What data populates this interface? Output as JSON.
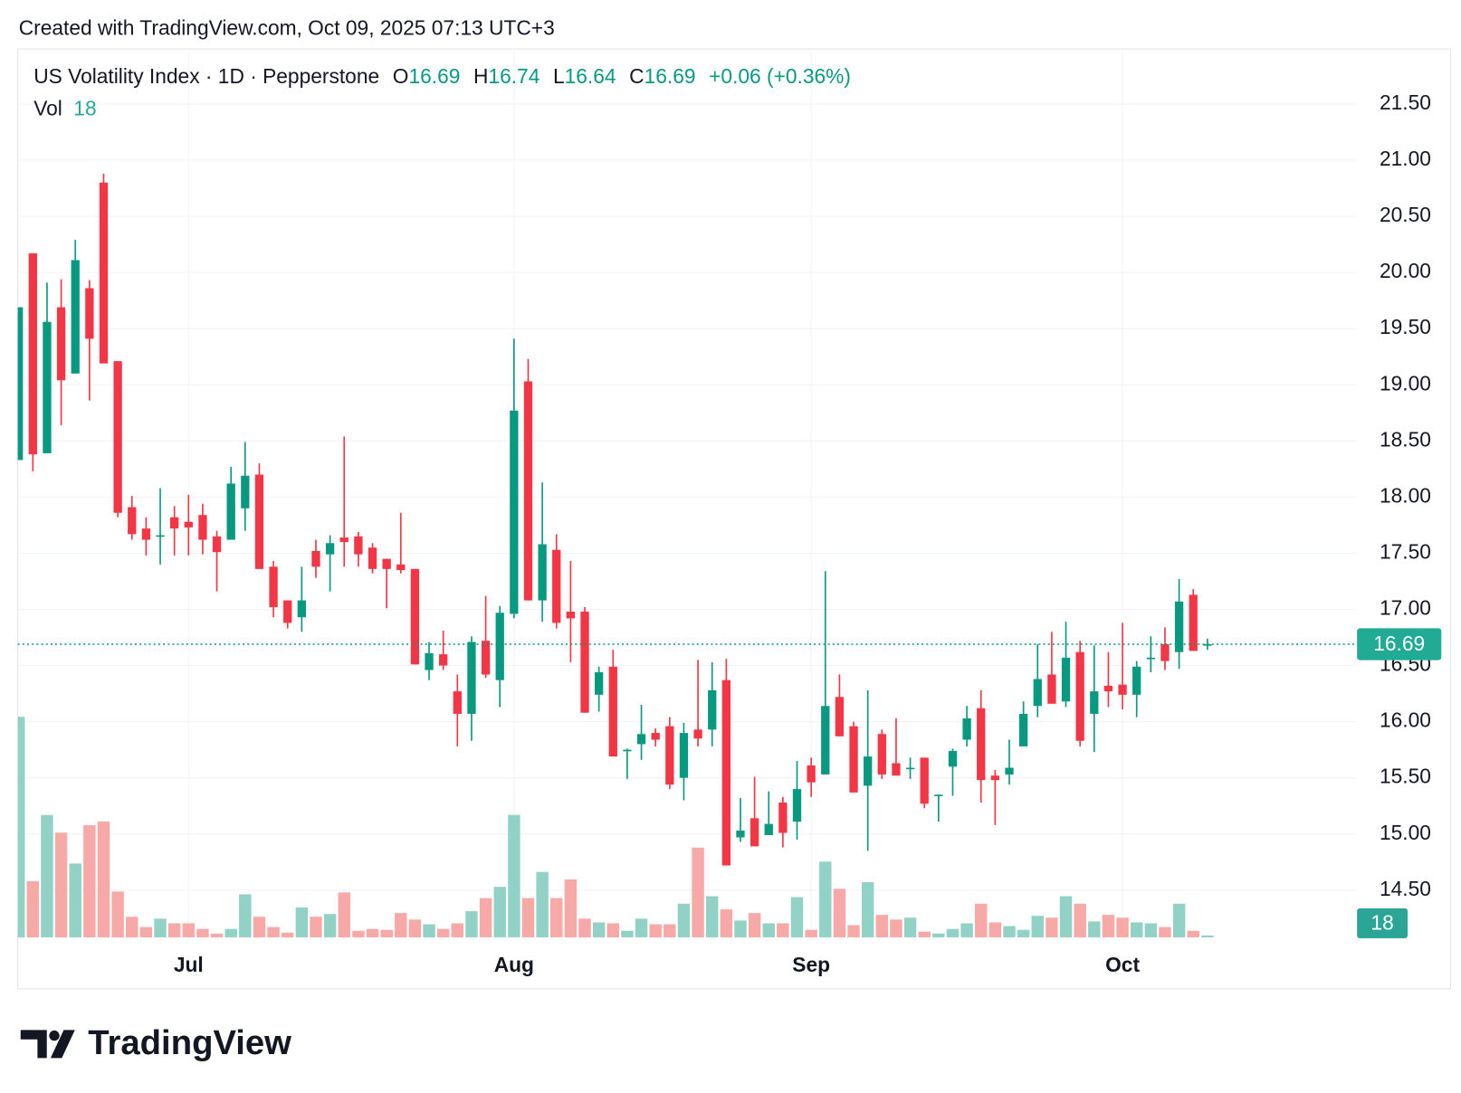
{
  "caption": "Created with TradingView.com, Oct 09, 2025 07:13 UTC+3",
  "brand": "TradingView",
  "chart_data": {
    "type": "candlestick",
    "symbol": "US Volatility Index · 1D · Pepperstone",
    "ohlc_letters": [
      "O",
      "H",
      "L",
      "C"
    ],
    "change": "+0.06 (+0.36%)",
    "volume_label": "Vol",
    "categories": [
      null,
      null,
      null,
      null,
      null,
      null,
      null,
      null,
      null,
      null,
      null,
      null,
      "Jul",
      null,
      null,
      null,
      null,
      null,
      null,
      null,
      null,
      null,
      null,
      null,
      null,
      null,
      null,
      null,
      null,
      null,
      null,
      null,
      null,
      null,
      null,
      "Aug",
      null,
      null,
      null,
      null,
      null,
      null,
      null,
      null,
      null,
      null,
      null,
      null,
      null,
      null,
      null,
      null,
      null,
      null,
      null,
      null,
      "Sep",
      null,
      null,
      null,
      null,
      null,
      null,
      null,
      null,
      null,
      null,
      null,
      null,
      null,
      null,
      null,
      null,
      null,
      null,
      null,
      null,
      null,
      "Oct",
      null,
      null,
      null,
      null,
      null,
      null
    ],
    "open": [
      18.33,
      20.17,
      18.39,
      19.69,
      19.1,
      19.86,
      20.8,
      19.21,
      17.91,
      17.72,
      17.65,
      17.82,
      17.78,
      17.84,
      17.65,
      17.62,
      17.9,
      18.2,
      17.38,
      17.08,
      16.93,
      17.52,
      17.49,
      17.64,
      17.65,
      17.55,
      17.45,
      17.4,
      17.36,
      16.46,
      16.6,
      16.27,
      16.07,
      16.72,
      16.37,
      16.96,
      19.03,
      17.08,
      17.53,
      16.98,
      16.98,
      16.24,
      16.49,
      15.74,
      15.8,
      15.9,
      15.96,
      15.5,
      15.93,
      15.93,
      16.37,
      14.97,
      15.14,
      14.99,
      15.28,
      15.11,
      15.61,
      15.53,
      16.22,
      15.96,
      15.43,
      15.89,
      15.63,
      15.58,
      15.68,
      15.34,
      15.6,
      15.84,
      16.12,
      15.52,
      15.53,
      15.78,
      16.14,
      16.42,
      16.18,
      16.62,
      16.07,
      16.32,
      16.33,
      16.24,
      16.56,
      16.69,
      16.62,
      17.13,
      16.69
    ],
    "high": [
      19.69,
      20.17,
      19.91,
      19.94,
      20.29,
      19.93,
      20.88,
      19.21,
      18.01,
      17.82,
      18.08,
      17.92,
      18.02,
      17.94,
      17.7,
      18.27,
      18.49,
      18.3,
      17.43,
      17.08,
      17.38,
      17.62,
      17.66,
      18.54,
      17.69,
      17.59,
      17.45,
      17.86,
      17.36,
      16.71,
      16.81,
      16.42,
      16.76,
      17.12,
      17.03,
      19.41,
      19.23,
      18.13,
      17.67,
      17.43,
      17.02,
      16.49,
      16.64,
      15.76,
      16.15,
      15.94,
      16.04,
      15.99,
      16.55,
      16.53,
      16.56,
      15.32,
      15.51,
      15.38,
      15.33,
      15.65,
      15.68,
      17.34,
      16.42,
      16.0,
      16.28,
      15.93,
      16.03,
      15.68,
      15.68,
      15.35,
      15.76,
      16.14,
      16.28,
      15.57,
      15.84,
      16.18,
      16.69,
      16.8,
      16.89,
      16.72,
      16.68,
      16.62,
      16.88,
      16.54,
      16.76,
      16.84,
      17.27,
      17.18,
      16.74
    ],
    "low": [
      18.33,
      18.23,
      18.39,
      18.64,
      19.1,
      18.86,
      19.19,
      17.82,
      17.62,
      17.48,
      17.4,
      17.48,
      17.48,
      17.49,
      17.16,
      17.62,
      17.7,
      17.36,
      16.93,
      16.83,
      16.8,
      17.28,
      17.16,
      17.38,
      17.38,
      17.32,
      17.01,
      17.32,
      16.51,
      16.37,
      16.46,
      15.78,
      15.83,
      16.39,
      16.13,
      16.92,
      17.08,
      16.89,
      16.83,
      16.53,
      16.08,
      16.09,
      15.69,
      15.49,
      15.66,
      15.78,
      15.4,
      15.3,
      15.78,
      15.78,
      14.72,
      14.93,
      14.89,
      14.99,
      14.88,
      14.95,
      15.33,
      15.53,
      15.87,
      15.37,
      14.85,
      15.49,
      15.52,
      15.49,
      15.23,
      15.11,
      15.34,
      15.78,
      15.28,
      15.08,
      15.44,
      15.78,
      16.04,
      16.16,
      16.13,
      15.78,
      15.73,
      16.13,
      16.11,
      16.04,
      16.44,
      16.46,
      16.47,
      16.63,
      16.64
    ],
    "close": [
      19.69,
      18.38,
      19.56,
      19.04,
      20.11,
      19.41,
      19.19,
      17.86,
      17.67,
      17.62,
      17.66,
      17.72,
      17.73,
      17.62,
      17.51,
      18.12,
      18.19,
      17.36,
      17.02,
      16.88,
      17.08,
      17.38,
      17.59,
      17.6,
      17.49,
      17.36,
      17.36,
      17.35,
      16.51,
      16.61,
      16.5,
      16.07,
      16.71,
      16.42,
      16.97,
      18.77,
      17.08,
      17.58,
      16.88,
      16.92,
      16.08,
      16.44,
      15.69,
      15.75,
      15.89,
      15.84,
      15.44,
      15.9,
      15.85,
      16.28,
      14.72,
      15.03,
      14.89,
      15.09,
      15.01,
      15.4,
      15.46,
      16.14,
      15.87,
      15.37,
      15.69,
      15.53,
      15.52,
      15.59,
      15.27,
      15.35,
      15.74,
      16.03,
      15.48,
      15.48,
      15.59,
      16.07,
      16.38,
      16.16,
      16.57,
      15.83,
      16.27,
      16.27,
      16.24,
      16.49,
      16.57,
      16.54,
      17.07,
      16.63,
      16.69
    ],
    "volume": [
      2124,
      540,
      1179,
      1008,
      711,
      1080,
      1116,
      441,
      198,
      99,
      180,
      135,
      135,
      81,
      36,
      81,
      414,
      198,
      99,
      45,
      288,
      198,
      225,
      432,
      63,
      81,
      72,
      234,
      171,
      126,
      81,
      135,
      252,
      378,
      486,
      1179,
      378,
      630,
      378,
      558,
      180,
      144,
      135,
      63,
      180,
      126,
      126,
      324,
      864,
      396,
      270,
      162,
      234,
      135,
      135,
      387,
      72,
      729,
      468,
      117,
      531,
      216,
      171,
      189,
      54,
      36,
      81,
      135,
      324,
      144,
      108,
      72,
      207,
      189,
      396,
      324,
      153,
      216,
      189,
      144,
      135,
      99,
      324,
      63,
      18
    ],
    "up_color": "#089981",
    "down_color": "#f23645",
    "volume_up_color": "#92d2c6",
    "volume_down_color": "#f7a9a7",
    "ylim": [
      14.08,
      21.99
    ],
    "yticks": [
      {
        "value": 14.5,
        "label": "14.50"
      },
      {
        "value": 15,
        "label": "15.00"
      },
      {
        "value": 15.5,
        "label": "15.50"
      },
      {
        "value": 16,
        "label": "16.00"
      },
      {
        "value": 16.5,
        "label": "16.50"
      },
      {
        "value": 17,
        "label": "17.00"
      },
      {
        "value": 17.5,
        "label": "17.50"
      },
      {
        "value": 18,
        "label": "18.00"
      },
      {
        "value": 18.5,
        "label": "18.50"
      },
      {
        "value": 19,
        "label": "19.00"
      },
      {
        "value": 19.5,
        "label": "19.50"
      },
      {
        "value": 20,
        "label": "20.00"
      },
      {
        "value": 20.5,
        "label": "20.50"
      },
      {
        "value": 21,
        "label": "21.00"
      },
      {
        "value": 21.5,
        "label": "21.50"
      }
    ],
    "volume_ylim": [
      0,
      2200
    ],
    "grid": true
  }
}
